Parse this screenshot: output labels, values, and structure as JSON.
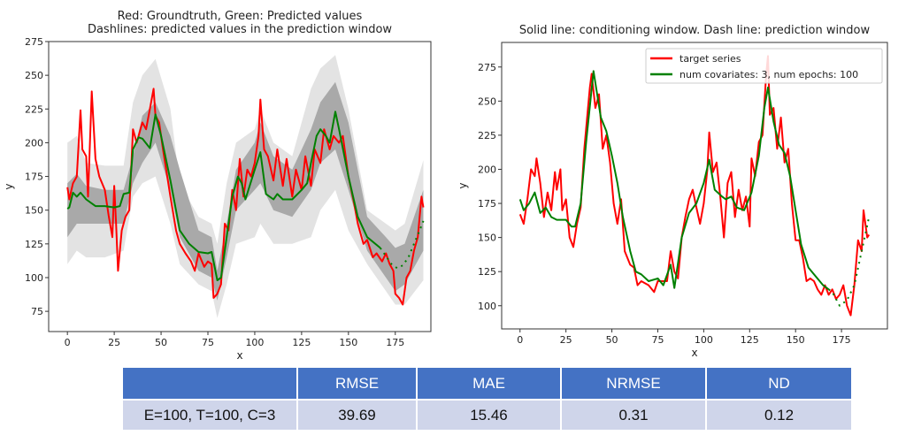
{
  "chart_data": [
    {
      "type": "line",
      "title": [
        "Red: Groundtruth, Green: Predicted values",
        "Dashlines: predicted values in the prediction window"
      ],
      "xlabel": "x",
      "ylabel": "y",
      "xlim": [
        -10,
        194
      ],
      "ylim": [
        60,
        275
      ],
      "xticks": [
        0,
        25,
        50,
        75,
        100,
        125,
        150,
        175
      ],
      "yticks": [
        75,
        100,
        125,
        150,
        175,
        200,
        225,
        250,
        275
      ],
      "colors": {
        "groundtruth": "#ff0000",
        "predicted": "#008000",
        "band_inner": "#a9a9a9",
        "band_outer": "#e3e3e3"
      },
      "groundtruth": {
        "x": [
          0,
          1,
          3,
          5,
          7,
          8,
          10,
          11,
          13,
          15,
          17,
          20,
          22,
          24,
          25,
          26,
          27,
          29,
          31,
          33,
          35,
          37,
          40,
          42,
          44,
          46,
          47,
          49,
          51,
          55,
          58,
          60,
          63,
          66,
          68,
          70,
          73,
          75,
          77,
          78,
          80,
          82,
          84,
          86,
          88,
          90,
          92,
          94,
          96,
          98,
          100,
          102,
          103,
          105,
          107,
          110,
          112,
          115,
          117,
          120,
          122,
          125,
          127,
          130,
          132,
          135,
          137,
          140,
          142,
          145,
          147,
          150,
          153,
          155,
          158,
          160,
          163,
          165,
          168,
          170,
          172,
          174,
          175,
          177,
          179,
          181,
          183,
          185,
          187,
          189,
          190
        ],
        "y": [
          167,
          158,
          170,
          175,
          224,
          195,
          190,
          160,
          238,
          188,
          175,
          165,
          146,
          130,
          168,
          140,
          105,
          135,
          145,
          150,
          210,
          200,
          215,
          210,
          225,
          240,
          220,
          215,
          195,
          160,
          135,
          125,
          118,
          112,
          105,
          118,
          108,
          112,
          110,
          85,
          88,
          95,
          140,
          135,
          165,
          150,
          188,
          160,
          180,
          175,
          185,
          205,
          232,
          195,
          190,
          172,
          195,
          168,
          188,
          160,
          180,
          165,
          190,
          168,
          195,
          185,
          210,
          195,
          205,
          200,
          205,
          175,
          155,
          140,
          125,
          128,
          115,
          118,
          112,
          118,
          110,
          105,
          88,
          85,
          80,
          100,
          105,
          120,
          130,
          160,
          152
        ]
      },
      "predicted": {
        "x": [
          0,
          1,
          3,
          5,
          7,
          10,
          13,
          15,
          20,
          25,
          28,
          30,
          33,
          35,
          38,
          40,
          44,
          47,
          50,
          55,
          60,
          65,
          70,
          75,
          77,
          80,
          82,
          85,
          88,
          91,
          93,
          95,
          100,
          103,
          106,
          110,
          112,
          115,
          120,
          125,
          128,
          130,
          133,
          135,
          138,
          140,
          143,
          145,
          150,
          155,
          160,
          167
        ],
        "y": [
          151,
          152,
          163,
          160,
          163,
          158,
          155,
          153,
          153,
          152,
          153,
          162,
          163,
          195,
          204,
          203,
          196,
          221,
          205,
          172,
          135,
          125,
          119,
          118,
          119,
          98,
          100,
          130,
          160,
          175,
          170,
          158,
          180,
          193,
          162,
          158,
          162,
          158,
          158,
          165,
          170,
          185,
          205,
          210,
          205,
          200,
          223,
          210,
          175,
          145,
          130,
          122
        ]
      },
      "predicted_window": {
        "x": [
          167,
          170,
          173,
          176,
          179,
          182,
          185,
          188,
          190
        ],
        "y": [
          122,
          116,
          110,
          107,
          109,
          115,
          125,
          135,
          142
        ]
      },
      "band_x": [
        0,
        5,
        10,
        20,
        30,
        35,
        40,
        47,
        55,
        60,
        70,
        77,
        80,
        85,
        90,
        100,
        103,
        110,
        120,
        130,
        135,
        143,
        150,
        160,
        170,
        175,
        180,
        190
      ],
      "band_inner_upper": [
        170,
        177,
        168,
        165,
        165,
        190,
        220,
        230,
        205,
        180,
        135,
        130,
        105,
        140,
        180,
        200,
        215,
        190,
        180,
        210,
        230,
        245,
        215,
        145,
        130,
        122,
        125,
        165
      ],
      "band_inner_lower": [
        130,
        140,
        140,
        140,
        140,
        170,
        185,
        200,
        165,
        130,
        105,
        100,
        83,
        115,
        150,
        165,
        170,
        150,
        145,
        165,
        185,
        195,
        165,
        120,
        100,
        90,
        95,
        120
      ],
      "band_outer_upper": [
        200,
        205,
        185,
        183,
        183,
        230,
        250,
        262,
        225,
        170,
        145,
        140,
        125,
        170,
        200,
        210,
        225,
        200,
        190,
        240,
        255,
        265,
        225,
        150,
        140,
        135,
        140,
        187
      ],
      "band_outer_lower": [
        110,
        120,
        115,
        115,
        120,
        160,
        170,
        175,
        140,
        110,
        95,
        90,
        70,
        95,
        125,
        130,
        140,
        125,
        125,
        130,
        150,
        165,
        135,
        110,
        90,
        80,
        80,
        98
      ]
    },
    {
      "type": "line",
      "title": [
        "Solid line: conditioning window. Dash line: prediction window"
      ],
      "xlabel": "x",
      "ylabel": "y",
      "xlim": [
        -10,
        200
      ],
      "ylim": [
        83,
        293
      ],
      "xticks": [
        0,
        25,
        50,
        75,
        100,
        125,
        150,
        175
      ],
      "yticks": [
        100,
        125,
        150,
        175,
        200,
        225,
        250,
        275
      ],
      "legend": {
        "placement": "top-right",
        "entries": [
          {
            "label": "target series",
            "color": "#ff0000"
          },
          {
            "label": "num covariates: 3, num epochs: 100",
            "color": "#008000"
          }
        ]
      },
      "target": {
        "x": [
          0,
          2,
          4,
          6,
          8,
          9,
          11,
          13,
          15,
          17,
          19,
          20,
          22,
          23,
          25,
          27,
          29,
          31,
          33,
          35,
          38,
          39,
          41,
          43,
          45,
          47,
          49,
          51,
          53,
          55,
          57,
          60,
          62,
          64,
          66,
          70,
          73,
          75,
          80,
          82,
          84,
          86,
          88,
          90,
          92,
          94,
          96,
          98,
          100,
          102,
          103,
          105,
          107,
          109,
          111,
          113,
          115,
          117,
          119,
          121,
          123,
          125,
          126,
          128,
          130,
          132,
          134,
          135,
          136,
          138,
          140,
          142,
          144,
          146,
          148,
          150,
          152,
          154,
          156,
          158,
          160,
          162,
          164,
          166,
          168,
          170,
          172,
          174,
          176,
          178,
          180,
          182,
          184,
          186,
          187,
          189,
          190
        ],
        "y": [
          167,
          160,
          178,
          200,
          195,
          208,
          190,
          165,
          183,
          170,
          198,
          185,
          200,
          170,
          178,
          150,
          143,
          160,
          172,
          215,
          260,
          270,
          245,
          255,
          215,
          225,
          205,
          175,
          160,
          178,
          140,
          130,
          128,
          115,
          118,
          115,
          110,
          118,
          118,
          140,
          125,
          120,
          150,
          165,
          178,
          185,
          172,
          160,
          175,
          200,
          227,
          198,
          205,
          180,
          150,
          190,
          198,
          165,
          185,
          170,
          180,
          158,
          208,
          195,
          220,
          225,
          270,
          283,
          240,
          245,
          215,
          238,
          205,
          215,
          175,
          148,
          148,
          135,
          118,
          120,
          118,
          112,
          108,
          115,
          108,
          112,
          105,
          108,
          115,
          100,
          93,
          115,
          148,
          140,
          170,
          150,
          152
        ]
      },
      "prediction": {
        "x": [
          0,
          2,
          5,
          8,
          11,
          14,
          17,
          20,
          25,
          28,
          30,
          33,
          36,
          40,
          44,
          47,
          50,
          53,
          56,
          60,
          63,
          66,
          70,
          75,
          78,
          82,
          84,
          88,
          92,
          96,
          100,
          103,
          106,
          110,
          112,
          115,
          118,
          122,
          126,
          130,
          133,
          135,
          138,
          141,
          144,
          147,
          150,
          153,
          157,
          160,
          165,
          168
        ],
        "y": [
          178,
          170,
          175,
          183,
          168,
          172,
          165,
          163,
          163,
          158,
          158,
          175,
          220,
          272,
          238,
          228,
          210,
          190,
          165,
          140,
          125,
          123,
          118,
          120,
          115,
          130,
          113,
          150,
          168,
          175,
          190,
          207,
          185,
          180,
          178,
          180,
          172,
          170,
          183,
          210,
          245,
          260,
          235,
          218,
          212,
          195,
          170,
          145,
          128,
          123,
          115,
          112
        ]
      },
      "prediction_window": {
        "x": [
          168,
          170,
          174,
          178,
          182,
          186,
          190
        ],
        "y": [
          112,
          110,
          100,
          104,
          115,
          140,
          165
        ]
      }
    }
  ],
  "table": {
    "headers": [
      "",
      "RMSE",
      "MAE",
      "NRMSE",
      "ND"
    ],
    "rows": [
      [
        "E=100, T=100, C=3",
        "39.69",
        "15.46",
        "0.31",
        "0.12"
      ]
    ]
  }
}
